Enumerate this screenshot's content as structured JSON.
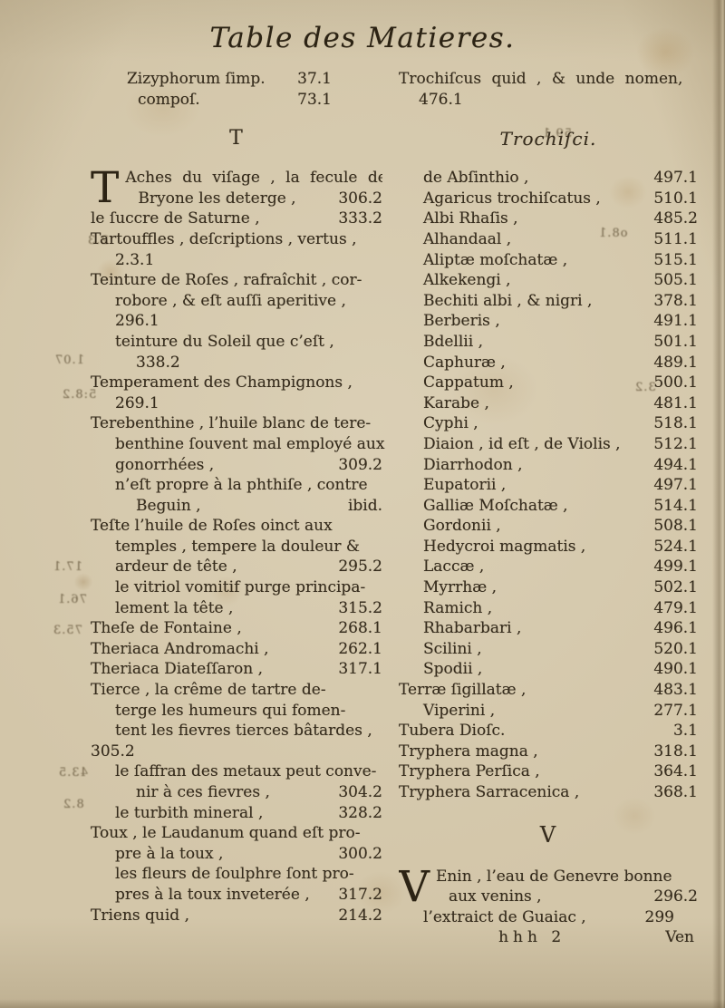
{
  "page": {
    "title": "Table des Matieres."
  },
  "sections": {
    "left_letter": "T",
    "right_title": "Trochiſci.",
    "right_letter": "V"
  },
  "top_left": {
    "lines": [
      {
        "t": "Zizyphorum ſimp.",
        "n": "37.1",
        "i": 0
      },
      {
        "t": "compoſ.",
        "n": "73.1",
        "i": 1
      }
    ]
  },
  "top_right": {
    "lines": [
      {
        "t": "Trochiſcus quid , & unde nomen,",
        "i": 0,
        "w": 1
      },
      {
        "t": "476.1",
        "i": 1
      }
    ]
  },
  "left_column": {
    "dropcap": "T",
    "cap_lines": [
      {
        "t": "Aches du viſage , la fecule de",
        "w": 1
      },
      {
        "t": "Bryone les deterge ,",
        "n": "306.2",
        "m": 1
      }
    ],
    "lines": [
      {
        "t": "le ſuccre de Saturne ,",
        "n": "333.2",
        "i": 0
      },
      {
        "t": "Tartouffles , deſcriptions , vertus ,",
        "i": 0
      },
      {
        "t": "2.3.1",
        "i": 1
      },
      {
        "t": "Teinture de Roſes , rafraîchit , cor-",
        "i": 0
      },
      {
        "t": "robore , & eſt auſſi aperitive ,",
        "i": 1
      },
      {
        "t": "296.1",
        "i": 1
      },
      {
        "t": "teinture du Soleil que c’eſt ,",
        "i": 1
      },
      {
        "t": "338.2",
        "i": 2
      },
      {
        "t": "Temperament des Champignons ,",
        "i": 0
      },
      {
        "t": "269.1",
        "i": 1
      },
      {
        "t": "Terebenthine , l’huile blanc de tere-",
        "i": 0
      },
      {
        "t": "benthine ſouvent mal employé aux",
        "i": 1
      },
      {
        "t": "gonorrhées ,",
        "n": "309.2",
        "i": 1
      },
      {
        "t": "n’eſt propre à la phthiſe , contre",
        "i": 1
      },
      {
        "t": "Beguin ,",
        "n": "ibid.",
        "i": 2
      },
      {
        "t": "Teſte l’huile de Roſes oinct aux",
        "i": 0
      },
      {
        "t": "temples , tempere la douleur &",
        "i": 1
      },
      {
        "t": "ardeur de tête ,",
        "n": "295.2",
        "i": 1
      },
      {
        "t": "le vitriol vomitif purge principa-",
        "i": 1
      },
      {
        "t": "lement la tête ,",
        "n": "315.2",
        "i": 1
      },
      {
        "t": "Theſe de Fontaine ,",
        "n": "268.1",
        "i": 0
      },
      {
        "t": "Theriaca Andromachi ,",
        "n": "262.1",
        "i": 0
      },
      {
        "t": "Theriaca Diateſſaron ,",
        "n": "317.1",
        "i": 0
      },
      {
        "t": "Tierce , la crême de tartre de-",
        "i": 0
      },
      {
        "t": "terge les humeurs qui fomen-",
        "i": 1
      },
      {
        "t": "tent les fievres tierces bâtardes ,",
        "i": 1
      },
      {
        "t": "305.2",
        "i": 0
      },
      {
        "t": "le ſaffran des metaux peut conve-",
        "i": 1
      },
      {
        "t": "nir à ces fievres ,",
        "n": "304.2",
        "i": 2
      },
      {
        "t": "le turbith mineral ,",
        "n": "328.2",
        "i": 1
      },
      {
        "t": "Toux , le Laudanum quand eſt pro-",
        "i": 0
      },
      {
        "t": "pre à la toux ,",
        "n": "300.2",
        "i": 1
      },
      {
        "t": "les fleurs de ſoulphre ſont pro-",
        "i": 1
      },
      {
        "t": "pres à la toux inveterée ,",
        "n": "317.2",
        "i": 1
      },
      {
        "t": "Triens quid ,",
        "n": "214.2",
        "i": 0
      }
    ]
  },
  "right_column": {
    "lines": [
      {
        "t": "de Abſinthio ,",
        "n": "497.1",
        "i": 1
      },
      {
        "t": "Agaricus trochiſcatus ,",
        "n": "510.1",
        "i": 1
      },
      {
        "t": "Albi Rhaſis ,",
        "n": "485.2",
        "i": 1
      },
      {
        "t": "Alhandaal ,",
        "n": "511.1",
        "i": 1
      },
      {
        "t": "Aliptæ moſchatæ ,",
        "n": "515.1",
        "i": 1
      },
      {
        "t": "Alkekengi ,",
        "n": "505.1",
        "i": 1
      },
      {
        "t": "Bechiti albi , & nigri ,",
        "n": "378.1",
        "i": 1
      },
      {
        "t": "Berberis ,",
        "n": "491.1",
        "i": 1
      },
      {
        "t": "Bdellii ,",
        "n": "501.1",
        "i": 1
      },
      {
        "t": "Caphuræ ,",
        "n": "489.1",
        "i": 1
      },
      {
        "t": "Cappatum ,",
        "n": "500.1",
        "i": 1
      },
      {
        "t": "Karabe ,",
        "n": "481.1",
        "i": 1
      },
      {
        "t": "Cyphi ,",
        "n": "518.1",
        "i": 1
      },
      {
        "t": "Diaion , id eſt , de Violis ,",
        "n": "512.1",
        "i": 1
      },
      {
        "t": "Diarrhodon ,",
        "n": "494.1",
        "i": 1
      },
      {
        "t": "Eupatorii ,",
        "n": "497.1",
        "i": 1
      },
      {
        "t": "Galliæ Moſchatæ ,",
        "n": "514.1",
        "i": 1
      },
      {
        "t": "Gordonii ,",
        "n": "508.1",
        "i": 1
      },
      {
        "t": "Hedycroi magmatis ,",
        "n": "524.1",
        "i": 1
      },
      {
        "t": "Laccæ ,",
        "n": "499.1",
        "i": 1
      },
      {
        "t": "Myrrhæ ,",
        "n": "502.1",
        "i": 1
      },
      {
        "t": "Ramich ,",
        "n": "479.1",
        "i": 1
      },
      {
        "t": "Rhabarbari ,",
        "n": "496.1",
        "i": 1
      },
      {
        "t": "Scilini ,",
        "n": "520.1",
        "i": 1
      },
      {
        "t": "Spodii ,",
        "n": "490.1",
        "i": 1
      },
      {
        "t": "Terræ ſigillatæ ,",
        "n": "483.1",
        "i": 0
      },
      {
        "t": "Viperini ,",
        "n": "277.1",
        "i": 1
      },
      {
        "t": "Tubera Dioſc.",
        "n": "3.1",
        "i": 0
      },
      {
        "t": "Tryphera magna ,",
        "n": "318.1",
        "i": 0
      },
      {
        "t": "Tryphera Perſica ,",
        "n": "364.1",
        "i": 0
      },
      {
        "t": "Tryphera Sarracenica ,",
        "n": "368.1",
        "i": 0
      }
    ],
    "dropcap": "V",
    "cap_lines": [
      {
        "t": "Enin , l’eau de Genevre bonne"
      },
      {
        "t": "aux venins ,",
        "n": "296.2",
        "m": 1
      }
    ],
    "after_lines": [
      {
        "t": "l’extraict de Guaiac ,",
        "n": "299",
        "i": 1,
        "nc": 1
      }
    ],
    "signature": "hhh 2",
    "catchword": "Ven"
  },
  "bleedthrough": [
    "1.07",
    "5:8.2",
    "2.3",
    "17.1",
    "76.1",
    "75.3",
    "43.5",
    "8.2",
    "59.1",
    "3.2",
    "o8.1"
  ]
}
